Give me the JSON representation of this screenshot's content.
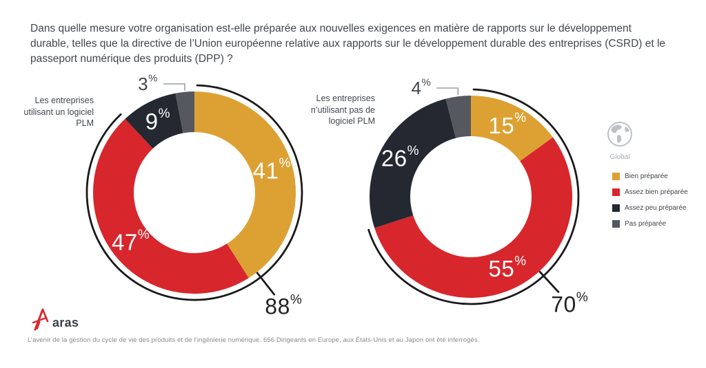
{
  "title": "Dans quelle mesure votre organisation est-elle préparée aux nouvelles exigences en matière de rapports sur le développement durable, telles que la directive de l’Union européenne relative aux rapports sur le développement durable des entreprises (CSRD) et le passeport numérique des produits (DPP) ?",
  "legend": {
    "region": "Global",
    "items": [
      {
        "label": "Bien préparée",
        "color": "#DDA133"
      },
      {
        "label": "Assez bien préparée",
        "color": "#D7262C"
      },
      {
        "label": "Assez peu préparée",
        "color": "#232831"
      },
      {
        "label": "Pas préparée",
        "color": "#55585F"
      }
    ]
  },
  "chart_data": [
    {
      "type": "pie",
      "subtype": "donut",
      "group_label_lines": [
        "Les entreprises",
        "utilisant un logiciel",
        "PLM"
      ],
      "categories": [
        "Bien préparée",
        "Assez bien préparée",
        "Assez peu préparée",
        "Pas préparée"
      ],
      "values": [
        41,
        47,
        9,
        3
      ],
      "colors": [
        "#DDA133",
        "#D7262C",
        "#232831",
        "#55585F"
      ],
      "unit": "%",
      "prepared_total": 88,
      "prepared_total_note": "Bien préparée + Assez bien préparée (arc extérieur)"
    },
    {
      "type": "pie",
      "subtype": "donut",
      "group_label_lines": [
        "Les entreprises",
        "n’utilisant pas de",
        "logiciel PLM"
      ],
      "categories": [
        "Bien préparée",
        "Assez bien préparée",
        "Assez peu préparée",
        "Pas préparée"
      ],
      "values": [
        15,
        55,
        26,
        4
      ],
      "colors": [
        "#DDA133",
        "#D7262C",
        "#232831",
        "#55585F"
      ],
      "unit": "%",
      "prepared_total": 70,
      "prepared_total_note": "Bien préparée + Assez bien préparée (arc extérieur)"
    }
  ],
  "footer": {
    "logo_text": "aras",
    "note": "L’avenir de la gestion du cycle de vie des produits et de l’ingénierie numérique. 656 Dirigeants en Europe, aux États-Unis et au Japon ont été interrogés."
  }
}
